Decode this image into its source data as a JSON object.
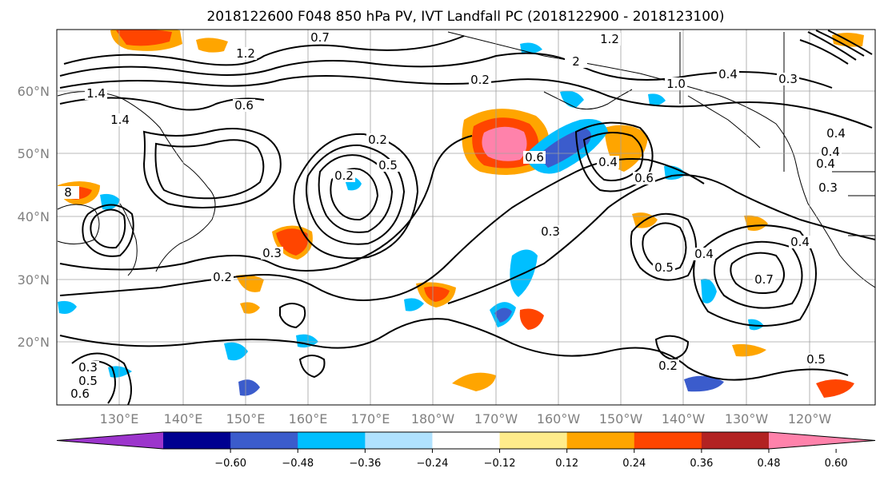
{
  "title": "2018122600 F048 850 hPa PV, IVT Landfall PC (2018122900 - 2018123100)",
  "map": {
    "lon_ticks": [
      "130°E",
      "140°E",
      "150°E",
      "160°E",
      "170°E",
      "180°W",
      "170°W",
      "160°W",
      "150°W",
      "140°W",
      "130°W",
      "120°W"
    ],
    "lat_ticks": [
      "60°N",
      "50°N",
      "40°N",
      "30°N",
      "20°N"
    ],
    "grid": true,
    "contour_labels": [
      "0.7",
      "1.2",
      "1.2",
      "1.4",
      "1.4",
      "0.6",
      "0.2",
      "0.2",
      "0.5",
      "0.3",
      "0.2",
      "0.3",
      "0.6",
      "0.6",
      "0.4",
      "0.5",
      "0.4",
      "0.7",
      "0.5",
      "0.4",
      "0.4",
      "0.3",
      "0.2",
      "0.3",
      "0.5",
      "0.3",
      "0.6",
      "0.4",
      "2",
      "0.4",
      "8",
      "0.4",
      "1.0",
      "0.2"
    ]
  },
  "colorbar": {
    "ticks": [
      "−0.60",
      "−0.48",
      "−0.36",
      "−0.24",
      "−0.12",
      "0.12",
      "0.24",
      "0.36",
      "0.48",
      "0.60"
    ],
    "colors": [
      "#9c35cc",
      "#000090",
      "#3b5ccc",
      "#00bfff",
      "#b0e2ff",
      "#ffffff",
      "#ffec8b",
      "#ffa500",
      "#ff4500",
      "#b22222",
      "#ff82ab"
    ],
    "extend": "both"
  }
}
